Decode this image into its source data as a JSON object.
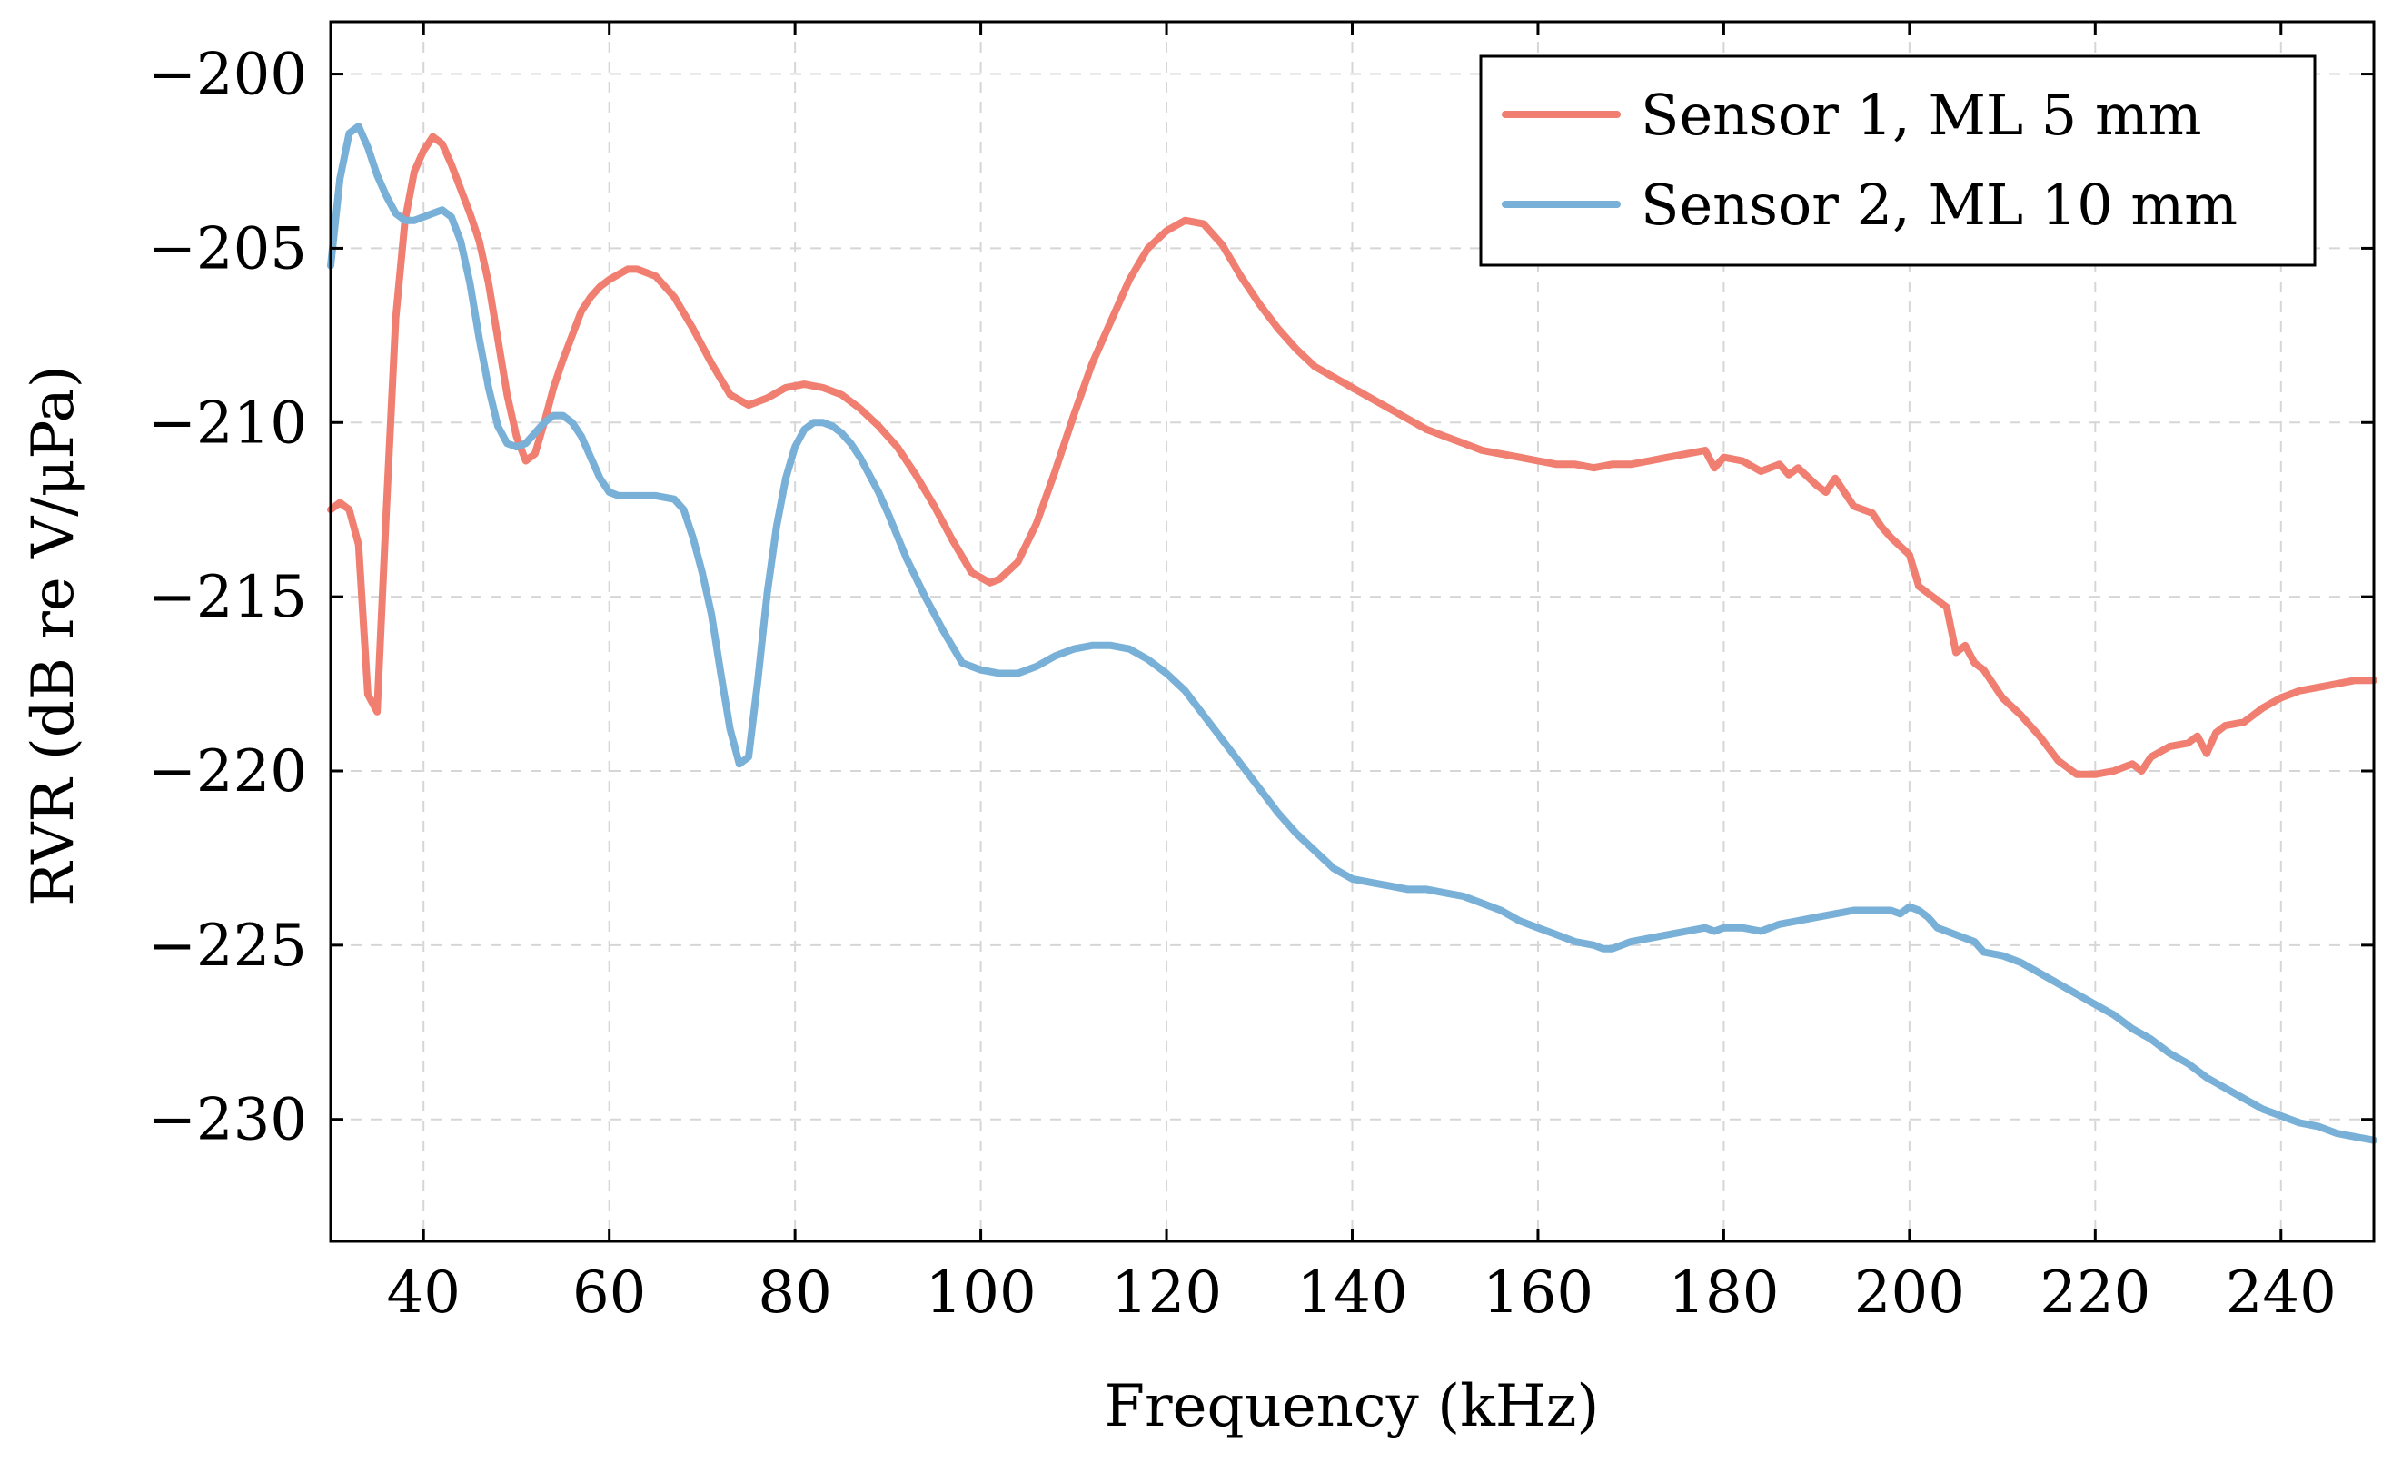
{
  "chart_data": {
    "type": "line",
    "title": "",
    "xlabel": "Frequency (kHz)",
    "ylabel": "RVR (dB re V/μPa)",
    "xlim": [
      30,
      250
    ],
    "ylim": [
      -233.5,
      -198.5
    ],
    "grid": true,
    "legend_position": "top-right",
    "x_ticks": [
      40,
      60,
      80,
      100,
      120,
      140,
      160,
      180,
      200,
      220,
      240
    ],
    "x_tick_labels": [
      "40",
      "60",
      "80",
      "100",
      "120",
      "140",
      "160",
      "180",
      "200",
      "220",
      "240"
    ],
    "y_ticks": [
      -200,
      -205,
      -210,
      -215,
      -220,
      -225,
      -230
    ],
    "y_tick_labels": [
      "−200",
      "−205",
      "−210",
      "−215",
      "−220",
      "−225",
      "−230"
    ],
    "series": [
      {
        "name": "Sensor 1, ML 5 mm",
        "color": "#f07f72",
        "x": [
          30,
          31,
          32,
          33,
          34,
          35,
          36,
          37,
          38,
          39,
          40,
          41,
          42,
          43,
          44,
          45,
          46,
          47,
          48,
          49,
          50,
          51,
          52,
          53,
          54,
          55,
          56,
          57,
          58,
          59,
          60,
          62,
          63,
          65,
          67,
          69,
          71,
          73,
          75,
          77,
          79,
          81,
          83,
          85,
          87,
          89,
          91,
          93,
          95,
          97,
          99,
          101,
          102,
          104,
          106,
          108,
          110,
          112,
          114,
          116,
          118,
          120,
          122,
          124,
          126,
          128,
          130,
          132,
          134,
          136,
          138,
          140,
          142,
          144,
          146,
          148,
          150,
          152,
          154,
          156,
          158,
          160,
          162,
          164,
          166,
          168,
          170,
          172,
          174,
          176,
          178,
          179,
          180,
          182,
          184,
          186,
          187,
          188,
          190,
          191,
          192,
          194,
          196,
          197,
          198,
          200,
          201,
          202,
          204,
          205,
          206,
          207,
          208,
          210,
          212,
          214,
          216,
          218,
          220,
          222,
          223,
          224,
          225,
          226,
          228,
          230,
          231,
          232,
          233,
          234,
          236,
          238,
          240,
          242,
          244,
          246,
          248,
          250
        ],
        "values": [
          -212.5,
          -212.3,
          -212.5,
          -213.5,
          -217.8,
          -218.3,
          -212.5,
          -207.0,
          -204.2,
          -202.8,
          -202.2,
          -201.8,
          -202.0,
          -202.6,
          -203.3,
          -204.0,
          -204.8,
          -206.0,
          -207.6,
          -209.2,
          -210.4,
          -211.1,
          -210.9,
          -210.0,
          -209.0,
          -208.2,
          -207.5,
          -206.8,
          -206.4,
          -206.1,
          -205.9,
          -205.6,
          -205.6,
          -205.8,
          -206.4,
          -207.3,
          -208.3,
          -209.2,
          -209.5,
          -209.3,
          -209.0,
          -208.9,
          -209.0,
          -209.2,
          -209.6,
          -210.1,
          -210.7,
          -211.5,
          -212.4,
          -213.4,
          -214.3,
          -214.6,
          -214.5,
          -214.0,
          -212.9,
          -211.4,
          -209.8,
          -208.3,
          -207.1,
          -205.9,
          -205.0,
          -204.5,
          -204.2,
          -204.3,
          -204.9,
          -205.8,
          -206.6,
          -207.3,
          -207.9,
          -208.4,
          -208.7,
          -209.0,
          -209.3,
          -209.6,
          -209.9,
          -210.2,
          -210.4,
          -210.6,
          -210.8,
          -210.9,
          -211.0,
          -211.1,
          -211.2,
          -211.2,
          -211.3,
          -211.2,
          -211.2,
          -211.1,
          -211.0,
          -210.9,
          -210.8,
          -211.3,
          -211.0,
          -211.1,
          -211.4,
          -211.2,
          -211.5,
          -211.3,
          -211.8,
          -212.0,
          -211.6,
          -212.4,
          -212.6,
          -213.0,
          -213.3,
          -213.8,
          -214.7,
          -214.9,
          -215.3,
          -216.6,
          -216.4,
          -216.9,
          -217.1,
          -217.9,
          -218.4,
          -219.0,
          -219.7,
          -220.1,
          -220.1,
          -220.0,
          -219.9,
          -219.8,
          -220.0,
          -219.6,
          -219.3,
          -219.2,
          -219.0,
          -219.5,
          -218.9,
          -218.7,
          -218.6,
          -218.2,
          -217.9,
          -217.7,
          -217.6,
          -217.5,
          -217.4,
          -217.4
        ]
      },
      {
        "name": "Sensor 2, ML 10 mm",
        "color": "#79b0d8",
        "x": [
          30,
          31,
          32,
          33,
          34,
          35,
          36,
          37,
          38,
          39,
          40,
          41,
          42,
          43,
          44,
          45,
          46,
          47,
          48,
          49,
          50,
          51,
          52,
          53,
          54,
          55,
          56,
          57,
          58,
          59,
          60,
          61,
          63,
          65,
          67,
          68,
          69,
          70,
          71,
          72,
          73,
          74,
          75,
          76,
          77,
          78,
          79,
          80,
          81,
          82,
          83,
          84,
          85,
          86,
          87,
          88,
          89,
          90,
          92,
          94,
          96,
          98,
          100,
          102,
          104,
          106,
          108,
          110,
          112,
          114,
          116,
          118,
          120,
          122,
          124,
          126,
          128,
          130,
          132,
          134,
          136,
          138,
          140,
          142,
          144,
          146,
          148,
          150,
          152,
          154,
          156,
          158,
          160,
          162,
          164,
          166,
          167,
          168,
          170,
          172,
          174,
          176,
          178,
          179,
          180,
          182,
          184,
          186,
          188,
          190,
          192,
          194,
          196,
          198,
          199,
          200,
          201,
          202,
          203,
          204,
          206,
          207,
          208,
          210,
          212,
          214,
          216,
          218,
          220,
          222,
          224,
          226,
          228,
          230,
          232,
          234,
          236,
          238,
          240,
          242,
          244,
          246,
          248,
          250
        ],
        "values": [
          -205.5,
          -203.0,
          -201.7,
          -201.5,
          -202.1,
          -202.9,
          -203.5,
          -204.0,
          -204.2,
          -204.2,
          -204.1,
          -204.0,
          -203.9,
          -204.1,
          -204.8,
          -206.0,
          -207.6,
          -209.0,
          -210.1,
          -210.6,
          -210.7,
          -210.6,
          -210.3,
          -210.0,
          -209.8,
          -209.8,
          -210.0,
          -210.4,
          -211.0,
          -211.6,
          -212.0,
          -212.1,
          -212.1,
          -212.1,
          -212.2,
          -212.5,
          -213.3,
          -214.3,
          -215.5,
          -217.2,
          -218.8,
          -219.8,
          -219.6,
          -217.4,
          -214.9,
          -213.0,
          -211.6,
          -210.7,
          -210.2,
          -210.0,
          -210.0,
          -210.1,
          -210.3,
          -210.6,
          -211.0,
          -211.5,
          -212.0,
          -212.6,
          -213.9,
          -215.0,
          -216.0,
          -216.9,
          -217.1,
          -217.2,
          -217.2,
          -217.0,
          -216.7,
          -216.5,
          -216.4,
          -216.4,
          -216.5,
          -216.8,
          -217.2,
          -217.7,
          -218.4,
          -219.1,
          -219.8,
          -220.5,
          -221.2,
          -221.8,
          -222.3,
          -222.8,
          -223.1,
          -223.2,
          -223.3,
          -223.4,
          -223.4,
          -223.5,
          -223.6,
          -223.8,
          -224.0,
          -224.3,
          -224.5,
          -224.7,
          -224.9,
          -225.0,
          -225.1,
          -225.1,
          -224.9,
          -224.8,
          -224.7,
          -224.6,
          -224.5,
          -224.6,
          -224.5,
          -224.5,
          -224.6,
          -224.4,
          -224.3,
          -224.2,
          -224.1,
          -224.0,
          -224.0,
          -224.0,
          -224.1,
          -223.9,
          -224.0,
          -224.2,
          -224.5,
          -224.6,
          -224.8,
          -224.9,
          -225.2,
          -225.3,
          -225.5,
          -225.8,
          -226.1,
          -226.4,
          -226.7,
          -227.0,
          -227.4,
          -227.7,
          -228.1,
          -228.4,
          -228.8,
          -229.1,
          -229.4,
          -229.7,
          -229.9,
          -230.1,
          -230.2,
          -230.4,
          -230.5,
          -230.6
        ]
      }
    ]
  }
}
